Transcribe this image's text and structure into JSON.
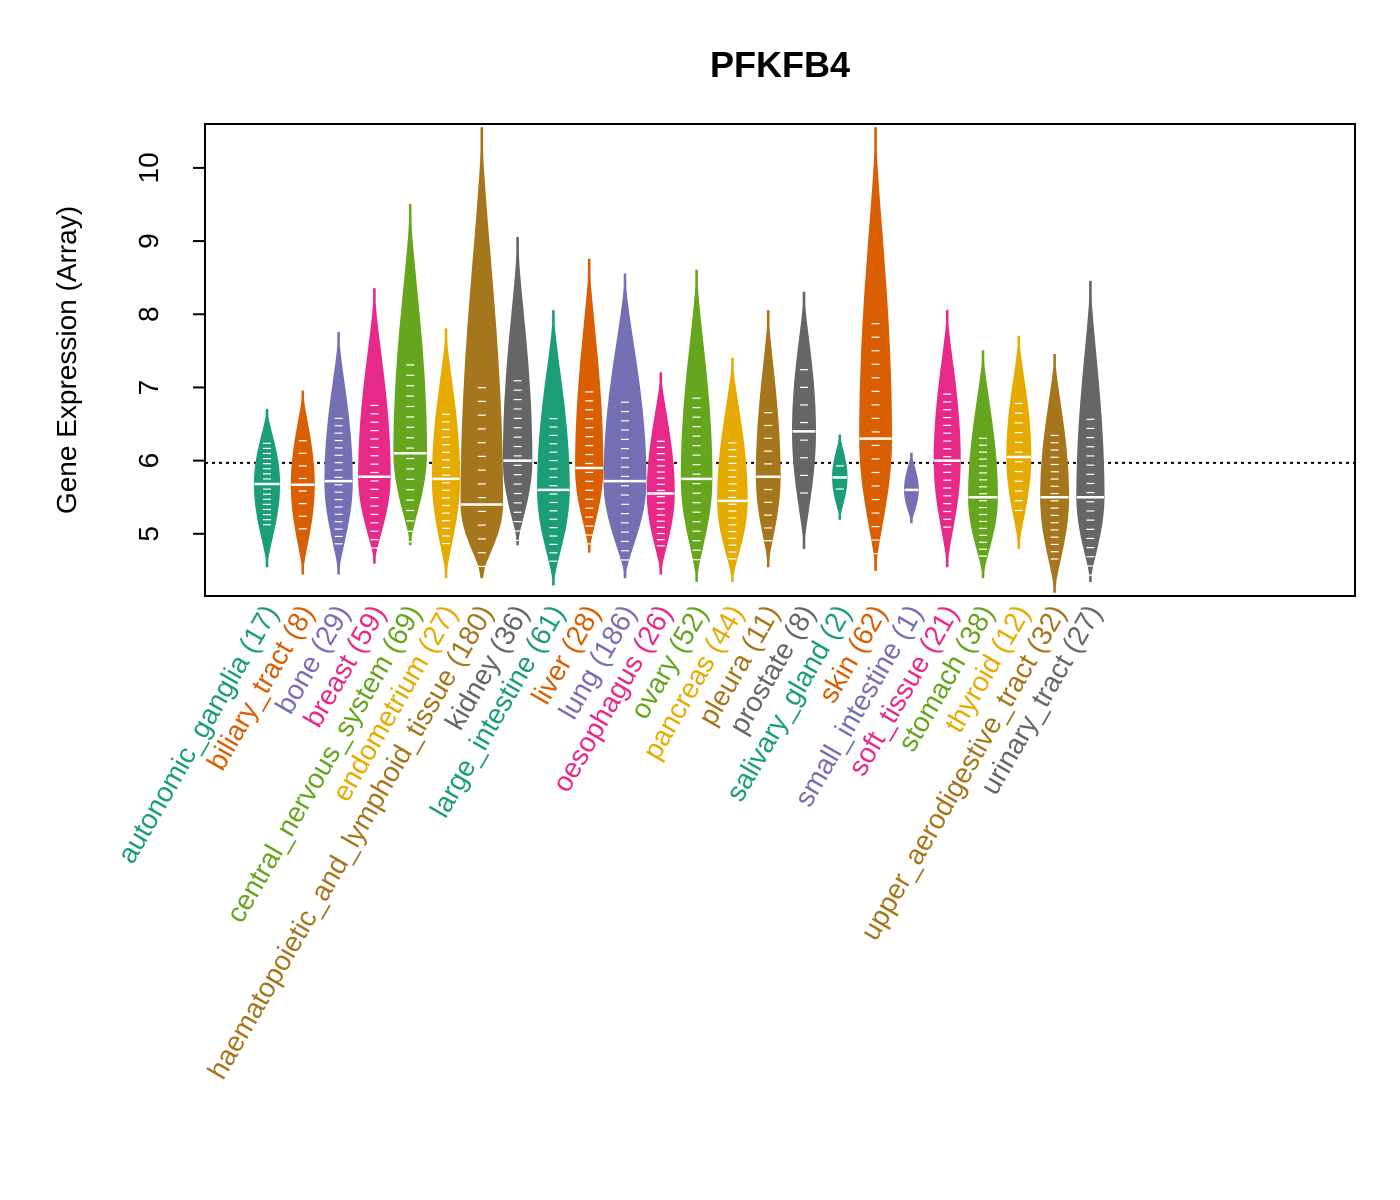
{
  "chart_data": {
    "type": "violin",
    "title": "PFKFB4",
    "ylabel": "Gene Expression (Array)",
    "xlabel": "",
    "ylim": [
      4.15,
      10.6
    ],
    "yticks": [
      5,
      6,
      7,
      8,
      9,
      10
    ],
    "reference_line": 5.97,
    "grid": false,
    "categories": [
      {
        "name": "autonomic_ganglia",
        "label": "autonomic_ganglia (17)",
        "n": 17,
        "color": "#1B9E77",
        "min": 4.55,
        "max": 6.7,
        "median": 5.68
      },
      {
        "name": "biliary_tract",
        "label": "biliary_tract (8)",
        "n": 8,
        "color": "#D95F02",
        "min": 4.45,
        "max": 6.95,
        "median": 5.67
      },
      {
        "name": "bone",
        "label": "bone (29)",
        "n": 29,
        "color": "#7570B3",
        "min": 4.45,
        "max": 7.75,
        "median": 5.72
      },
      {
        "name": "breast",
        "label": "breast (59)",
        "n": 59,
        "color": "#E7298A",
        "min": 4.6,
        "max": 8.35,
        "median": 5.78
      },
      {
        "name": "central_nervous_system",
        "label": "central_nervous_system (69)",
        "n": 69,
        "color": "#66A61E",
        "min": 4.85,
        "max": 9.5,
        "median": 6.1
      },
      {
        "name": "endometrium",
        "label": "endometrium (27)",
        "n": 27,
        "color": "#E6AB02",
        "min": 4.4,
        "max": 7.8,
        "median": 5.75
      },
      {
        "name": "haematopoietic_and_lymphoid_tissue",
        "label": "haematopoietic_and_lymphoid_tissue (180)",
        "n": 180,
        "color": "#A6761D",
        "min": 4.4,
        "max": 10.55,
        "median": 5.4
      },
      {
        "name": "kidney",
        "label": "kidney (36)",
        "n": 36,
        "color": "#666666",
        "min": 4.85,
        "max": 9.05,
        "median": 6.0
      },
      {
        "name": "large_intestine",
        "label": "large_intestine (61)",
        "n": 61,
        "color": "#1B9E77",
        "min": 4.3,
        "max": 8.05,
        "median": 5.6
      },
      {
        "name": "liver",
        "label": "liver (28)",
        "n": 28,
        "color": "#D95F02",
        "min": 4.75,
        "max": 8.75,
        "median": 5.9
      },
      {
        "name": "lung",
        "label": "lung (186)",
        "n": 186,
        "color": "#7570B3",
        "min": 4.4,
        "max": 8.55,
        "median": 5.72
      },
      {
        "name": "oesophagus",
        "label": "oesophagus (26)",
        "n": 26,
        "color": "#E7298A",
        "min": 4.45,
        "max": 7.2,
        "median": 5.55
      },
      {
        "name": "ovary",
        "label": "ovary (52)",
        "n": 52,
        "color": "#66A61E",
        "min": 4.35,
        "max": 8.6,
        "median": 5.75
      },
      {
        "name": "pancreas",
        "label": "pancreas (44)",
        "n": 44,
        "color": "#E6AB02",
        "min": 4.35,
        "max": 7.4,
        "median": 5.45
      },
      {
        "name": "pleura",
        "label": "pleura (11)",
        "n": 11,
        "color": "#A6761D",
        "min": 4.55,
        "max": 8.05,
        "median": 5.78
      },
      {
        "name": "prostate",
        "label": "prostate (8)",
        "n": 8,
        "color": "#666666",
        "min": 4.8,
        "max": 8.3,
        "median": 6.4
      },
      {
        "name": "salivary_gland",
        "label": "salivary_gland (2)",
        "n": 2,
        "color": "#1B9E77",
        "min": 5.2,
        "max": 6.35,
        "median": 5.77
      },
      {
        "name": "skin",
        "label": "skin (62)",
        "n": 62,
        "color": "#D95F02",
        "min": 4.5,
        "max": 10.55,
        "median": 6.3
      },
      {
        "name": "small_intestine",
        "label": "small_intestine (1)",
        "n": 1,
        "color": "#7570B3",
        "min": 5.15,
        "max": 6.1,
        "median": 5.6
      },
      {
        "name": "soft_tissue",
        "label": "soft_tissue (21)",
        "n": 21,
        "color": "#E7298A",
        "min": 4.55,
        "max": 8.05,
        "median": 6.0
      },
      {
        "name": "stomach",
        "label": "stomach (38)",
        "n": 38,
        "color": "#66A61E",
        "min": 4.4,
        "max": 7.5,
        "median": 5.5
      },
      {
        "name": "thyroid",
        "label": "thyroid (12)",
        "n": 12,
        "color": "#E6AB02",
        "min": 4.8,
        "max": 7.7,
        "median": 6.05
      },
      {
        "name": "upper_aerodigestive_tract",
        "label": "upper_aerodigestive_tract (32)",
        "n": 32,
        "color": "#A6761D",
        "min": 4.2,
        "max": 7.45,
        "median": 5.5
      },
      {
        "name": "urinary_tract",
        "label": "urinary_tract (27)",
        "n": 27,
        "color": "#666666",
        "min": 4.35,
        "max": 8.45,
        "median": 5.5
      }
    ]
  }
}
